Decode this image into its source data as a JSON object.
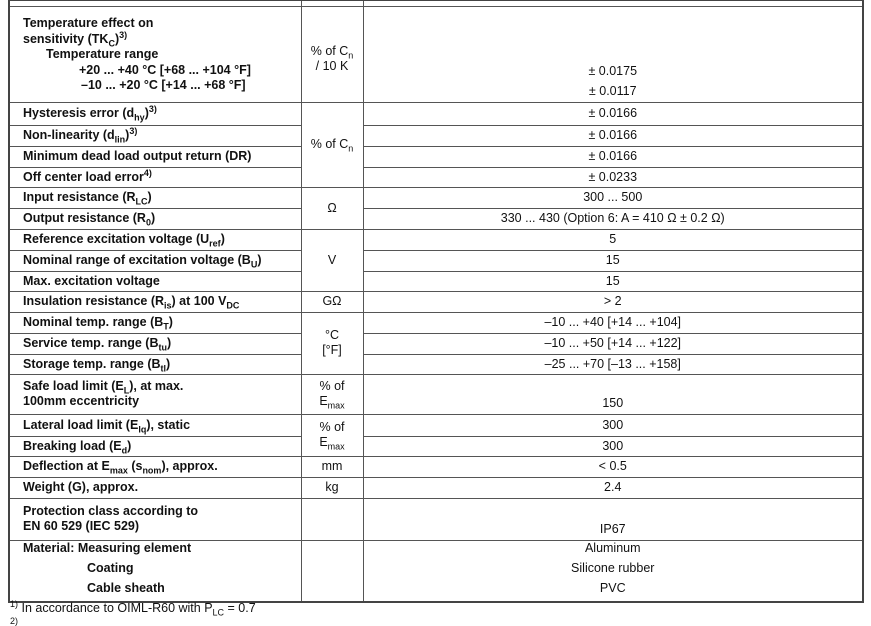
{
  "tk": {
    "lines": [
      [
        "Temperature effect on"
      ],
      [
        "sensitivity (TK",
        {
          "sub": "C"
        },
        ")",
        {
          "sup": "3)"
        }
      ],
      [
        "Temperature range"
      ],
      [
        "+20 ... +40 °C [+68 ... +104 °F]"
      ],
      [
        "–10 ... +20 °C [+14 ... +68 °F]"
      ]
    ],
    "unit": [
      "% of C",
      {
        "sub": "n"
      },
      " / 10 K"
    ],
    "values": [
      "± 0.0175",
      "± 0.0117"
    ]
  },
  "rows": [
    {
      "label": [
        "Hysteresis error (d",
        {
          "sub": "hy"
        },
        ")",
        {
          "sup": "3)"
        }
      ],
      "value": "± 0.0166"
    },
    {
      "label": [
        "Non-linearity (d",
        {
          "sub": "lin"
        },
        ")",
        {
          "sup": "3)"
        }
      ],
      "value": "± 0.0166"
    },
    {
      "label": [
        "Minimum dead load output return (DR)"
      ],
      "value": "± 0.0166"
    },
    {
      "label": [
        "Off center load error",
        {
          "sup": "4)"
        }
      ],
      "value": "± 0.0233"
    },
    {
      "label": [
        "Input resistance (R",
        {
          "sub": "LC"
        },
        ")"
      ],
      "value": "300 ... 500"
    },
    {
      "label": [
        "Output resistance (R",
        {
          "sub": "0"
        },
        ")"
      ],
      "value": "330 ... 430 (Option 6: A = 410 Ω ± 0.2 Ω)"
    },
    {
      "label": [
        "Reference excitation voltage (U",
        {
          "sub": "ref"
        },
        ")"
      ],
      "value": "5"
    },
    {
      "label": [
        "Nominal range of excitation voltage (B",
        {
          "sub": "U"
        },
        ")"
      ],
      "value": "15"
    },
    {
      "label": [
        "Max. excitation voltage"
      ],
      "value": "15"
    },
    {
      "label": [
        "Insulation resistance (R",
        {
          "sub": "is"
        },
        ") at 100 V",
        {
          "sub": "DC"
        }
      ],
      "value": "> 2"
    },
    {
      "label": [
        "Nominal temp. range (B",
        {
          "sub": "T"
        },
        ")"
      ],
      "value": "–10 ... +40 [+14 ... +104]"
    },
    {
      "label": [
        "Service temp. range  (B",
        {
          "sub": "tu"
        },
        ")"
      ],
      "value": "–10 ... +50 [+14 ... +122]"
    },
    {
      "label": [
        "Storage temp. range (B",
        {
          "sub": "tl"
        },
        ")"
      ],
      "value": "–25 ... +70 [–13 ... +158]"
    },
    {
      "label": [
        "Safe load limit (E",
        {
          "sub": "L"
        },
        "), at max.",
        {
          "br": 1
        },
        "100mm eccentricity"
      ],
      "value": "150"
    },
    {
      "label": [
        "Lateral load limit (E",
        {
          "sub": "lq"
        },
        "), static"
      ],
      "value": "300"
    },
    {
      "label": [
        "Breaking load (E",
        {
          "sub": "d"
        },
        ")"
      ],
      "value": "300"
    },
    {
      "label": [
        "Deflection at E",
        {
          "sub": "max"
        },
        " (s",
        {
          "sub": "nom"
        },
        "), approx."
      ],
      "value": "< 0.5"
    },
    {
      "label": [
        "Weight (G), approx."
      ],
      "value": "2.4"
    },
    {
      "label": [
        "Protection class according to",
        {
          "br": 1
        },
        "EN 60 529 (IEC 529)"
      ],
      "value": "IP67"
    }
  ],
  "units": [
    [
      "% of C",
      {
        "sub": "n"
      }
    ],
    [
      "Ω"
    ],
    [
      "V"
    ],
    [
      "GΩ"
    ],
    [
      "°C",
      {
        "br": 1
      },
      "[°F]"
    ],
    [
      "% of",
      {
        "br": 1
      },
      "E",
      {
        "sub": "max"
      }
    ],
    [
      "% of",
      {
        "br": 1
      },
      "E",
      {
        "sub": "max"
      }
    ],
    [
      "mm"
    ],
    [
      "kg"
    ]
  ],
  "material": {
    "label": "Material:",
    "items": [
      {
        "name": "Measuring element",
        "value": "Aluminum"
      },
      {
        "name": "Coating",
        "value": "Silicone rubber"
      },
      {
        "name": "Cable sheath",
        "value": "PVC"
      }
    ]
  },
  "footnotes": [
    [
      {
        "sup": "1)"
      },
      " In accordance to OIML-R60 with P",
      {
        "sub": "LC"
      },
      " = 0.7"
    ]
  ]
}
